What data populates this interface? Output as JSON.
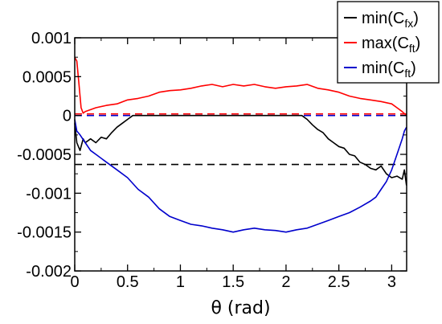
{
  "chart_data": {
    "type": "line",
    "xlabel": "θ (rad)",
    "ylabel": "",
    "xlim": [
      0,
      3.1416
    ],
    "ylim": [
      -0.002,
      0.001
    ],
    "xticks": [
      {
        "value": 0,
        "label": "0"
      },
      {
        "value": 0.5,
        "label": "0.5"
      },
      {
        "value": 1,
        "label": "1"
      },
      {
        "value": 1.5,
        "label": "1.5"
      },
      {
        "value": 2,
        "label": "2"
      },
      {
        "value": 2.5,
        "label": "2.5"
      },
      {
        "value": 3,
        "label": "3"
      }
    ],
    "yticks": [
      {
        "value": 0.001,
        "label": "0.001"
      },
      {
        "value": 0.0005,
        "label": "0.0005"
      },
      {
        "value": 0,
        "label": "0"
      },
      {
        "value": -0.0005,
        "label": "-0.0005"
      },
      {
        "value": -0.001,
        "label": "-0.001"
      },
      {
        "value": -0.0015,
        "label": "-0.0015"
      },
      {
        "value": -0.002,
        "label": "-0.002"
      }
    ],
    "grid": false,
    "legend_position": "top-right",
    "series": [
      {
        "name": "min(C_fx)",
        "legend_main": "min(C",
        "legend_sub": "fx",
        "legend_close": ")",
        "color": "#000000",
        "x": [
          0,
          0.02,
          0.05,
          0.08,
          0.1,
          0.15,
          0.2,
          0.25,
          0.3,
          0.35,
          0.4,
          0.45,
          0.5,
          0.55,
          0.6,
          0.8,
          1.0,
          1.2,
          1.4,
          1.6,
          1.8,
          2.0,
          2.15,
          2.2,
          2.25,
          2.3,
          2.35,
          2.4,
          2.45,
          2.5,
          2.55,
          2.6,
          2.65,
          2.7,
          2.75,
          2.8,
          2.85,
          2.9,
          2.95,
          3.0,
          3.05,
          3.1,
          3.12,
          3.14
        ],
        "y": [
          -0.0001,
          -0.00035,
          -0.00045,
          -0.0003,
          -0.00035,
          -0.0003,
          -0.00035,
          -0.00028,
          -0.0003,
          -0.00022,
          -0.00015,
          -0.0001,
          -5e-05,
          0,
          0,
          0,
          0,
          0,
          0,
          0,
          0,
          0,
          0,
          -5e-05,
          -0.00012,
          -0.00018,
          -0.00022,
          -0.0003,
          -0.00035,
          -0.0004,
          -0.00042,
          -0.0005,
          -0.00052,
          -0.0006,
          -0.00063,
          -0.00068,
          -0.0007,
          -0.00065,
          -0.00075,
          -0.0008,
          -0.00078,
          -0.00082,
          -0.0007,
          -0.0009
        ]
      },
      {
        "name": "max(C_ft)",
        "legend_main": "max(C",
        "legend_sub": "ft",
        "legend_close": ")",
        "color": "#ff0000",
        "x": [
          0,
          0.02,
          0.04,
          0.06,
          0.08,
          0.1,
          0.2,
          0.3,
          0.4,
          0.5,
          0.6,
          0.7,
          0.8,
          0.9,
          1.0,
          1.1,
          1.2,
          1.3,
          1.4,
          1.5,
          1.6,
          1.7,
          1.8,
          1.9,
          2.0,
          2.1,
          2.2,
          2.3,
          2.4,
          2.5,
          2.6,
          2.7,
          2.8,
          2.9,
          3.0,
          3.05,
          3.1,
          3.14
        ],
        "y": [
          0.00075,
          0.0007,
          0.0004,
          0.0001,
          3e-05,
          5e-05,
          0.0001,
          0.00013,
          0.00015,
          0.0002,
          0.00022,
          0.00025,
          0.0003,
          0.00032,
          0.00033,
          0.00035,
          0.00038,
          0.0004,
          0.00037,
          0.0004,
          0.00038,
          0.0004,
          0.00037,
          0.00035,
          0.00037,
          0.00038,
          0.0004,
          0.00035,
          0.00033,
          0.0003,
          0.00025,
          0.00022,
          0.0002,
          0.00018,
          0.00015,
          0.0001,
          5e-05,
          0
        ]
      },
      {
        "name": "min(C_ft)",
        "legend_main": "min(C",
        "legend_sub": "ft",
        "legend_close": ")",
        "color": "#0000cc",
        "x": [
          0,
          0.02,
          0.05,
          0.1,
          0.15,
          0.2,
          0.3,
          0.4,
          0.5,
          0.6,
          0.7,
          0.8,
          0.9,
          1.0,
          1.1,
          1.2,
          1.3,
          1.4,
          1.5,
          1.6,
          1.7,
          1.8,
          1.9,
          2.0,
          2.1,
          2.2,
          2.3,
          2.4,
          2.5,
          2.6,
          2.7,
          2.8,
          2.85,
          2.9,
          2.95,
          3.0,
          3.05,
          3.1,
          3.12,
          3.14
        ],
        "y": [
          -5e-05,
          -0.0002,
          -0.00025,
          -0.00035,
          -0.00045,
          -0.0005,
          -0.0006,
          -0.0007,
          -0.0008,
          -0.00095,
          -0.00105,
          -0.0012,
          -0.0013,
          -0.00135,
          -0.0014,
          -0.00142,
          -0.00145,
          -0.00147,
          -0.0015,
          -0.00147,
          -0.00145,
          -0.00147,
          -0.00148,
          -0.0015,
          -0.00147,
          -0.00145,
          -0.0014,
          -0.00135,
          -0.0013,
          -0.00125,
          -0.00118,
          -0.0011,
          -0.00105,
          -0.00095,
          -0.00085,
          -0.0007,
          -0.0005,
          -0.0003,
          -0.0002,
          -0.00015
        ]
      }
    ],
    "reference_lines": [
      {
        "y": -0.00063,
        "color": "#000000",
        "style": "dashed"
      },
      {
        "y": 2e-05,
        "color": "#ff0000",
        "style": "dashed"
      },
      {
        "y": 0,
        "color": "#0000cc",
        "style": "dashed"
      }
    ]
  }
}
